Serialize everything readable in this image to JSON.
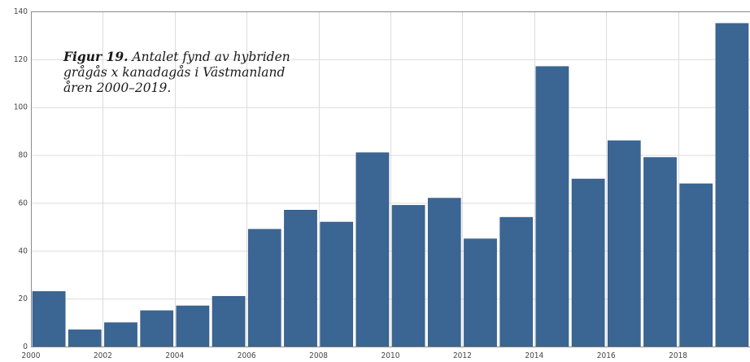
{
  "caption": {
    "figure_label": "Figur 19.",
    "text": "Antalet fynd av hybriden grågås x kanadagås i Västmanland åren 2000–2019."
  },
  "colors": {
    "bar": "#3b6593",
    "bar_stroke": "#2f5580",
    "grid": "#dcdcdc",
    "axis": "#8a8a8a"
  },
  "chart_data": {
    "type": "bar",
    "title": "",
    "xlabel": "",
    "ylabel": "",
    "categories": [
      "2000",
      "2001",
      "2002",
      "2003",
      "2004",
      "2005",
      "2006",
      "2007",
      "2008",
      "2009",
      "2010",
      "2011",
      "2012",
      "2013",
      "2014",
      "2015",
      "2016",
      "2017",
      "2018",
      "2019"
    ],
    "values": [
      23,
      7,
      10,
      15,
      17,
      21,
      49,
      57,
      52,
      81,
      59,
      62,
      45,
      54,
      117,
      70,
      86,
      79,
      68,
      135
    ],
    "ylim": [
      0,
      140
    ],
    "yticks": [
      0,
      20,
      40,
      60,
      80,
      100,
      120,
      140
    ],
    "xtick_labels": [
      "2000",
      "2002",
      "2004",
      "2006",
      "2008",
      "2010",
      "2012",
      "2014",
      "2016",
      "2018"
    ],
    "grid": true,
    "legend": "none"
  }
}
